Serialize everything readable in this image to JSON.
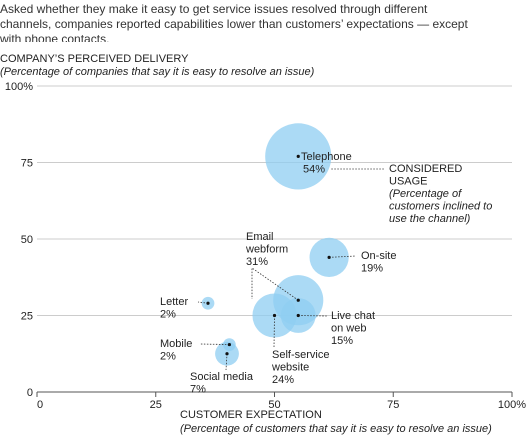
{
  "chart_data": {
    "type": "bubble",
    "subtitle": "Asked whether they make it easy to get service issues resolved through different channels, companies reported capabilities lower than customers’ expectations — except with phone contacts.",
    "y_label": "COMPANY’S PERCEIVED DELIVERY",
    "y_sublabel": "(Percentage of companies that say it is easy to resolve an issue)",
    "x_label": "CUSTOMER EXPECTATION",
    "x_sublabel": "(Percentage of customers that say it is easy to resolve an issue)",
    "size_label": "CONSIDERED USAGE",
    "size_sublabel": "(Percentage of customers inclined to use the channel)",
    "color": "#8fcdf2",
    "xlim": [
      0,
      100
    ],
    "xticks": [
      0,
      25,
      50,
      75,
      {
        "value": 100,
        "label": "100%"
      }
    ],
    "ylim": [
      0,
      100
    ],
    "yticks": [
      0,
      25,
      50,
      75,
      {
        "value": 100,
        "label": "100%"
      }
    ],
    "grid": true,
    "points": [
      {
        "name": "Telephone",
        "x": 55,
        "y": 77,
        "size": 54,
        "value_label": "54%"
      },
      {
        "name": "On-site",
        "x": 61.5,
        "y": 44,
        "size": 19,
        "value_label": "19%"
      },
      {
        "name": "Email webform",
        "x": 55,
        "y": 30,
        "size": 31,
        "value_label": "31%"
      },
      {
        "name": "Live chat on web",
        "x": 55,
        "y": 25,
        "size": 15,
        "value_label": "15%"
      },
      {
        "name": "Self-service website",
        "x": 50,
        "y": 25,
        "size": 24,
        "value_label": "24%"
      },
      {
        "name": "Letter",
        "x": 36,
        "y": 29,
        "size": 2,
        "value_label": "2%"
      },
      {
        "name": "Mobile",
        "x": 40.5,
        "y": 15.5,
        "size": 2,
        "value_label": "2%"
      },
      {
        "name": "Social media",
        "x": 40,
        "y": 12.5,
        "size": 7,
        "value_label": "7%"
      }
    ]
  }
}
